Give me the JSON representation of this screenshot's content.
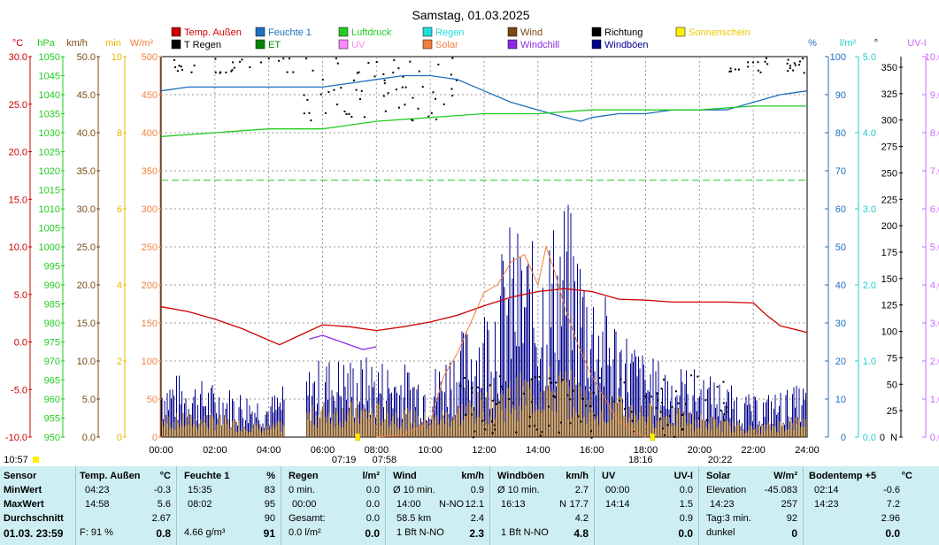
{
  "title": "Samstag, 01.03.2025",
  "colors": {
    "temp": "#cc0000",
    "humidity": "#1f6fbf",
    "pressure": "#22cc22",
    "rain": "#22dddd",
    "wind": "#7a4a10",
    "direction": "#000000",
    "sunshine": "#ffee00",
    "train": "#000000",
    "et": "#008800",
    "uv": "#ff88ff",
    "solar": "#f08040",
    "windchill": "#8a2be2",
    "gust": "#00008b"
  },
  "legend": [
    {
      "label": "Temp. Außen",
      "color": "#cc0000"
    },
    {
      "label": "Feuchte 1",
      "color": "#1f6fbf"
    },
    {
      "label": "Luftdruck",
      "color": "#22cc22"
    },
    {
      "label": "Regen",
      "color": "#22dddd"
    },
    {
      "label": "Wind",
      "color": "#7a4a10"
    },
    {
      "label": "Richtung",
      "color": "#000000"
    },
    {
      "label": "Sonnenschein",
      "color": "#ffee00"
    },
    {
      "label": "T Regen",
      "color": "#000000"
    },
    {
      "label": "ET",
      "color": "#008800"
    },
    {
      "label": "UV",
      "color": "#ff88ff"
    },
    {
      "label": "Solar",
      "color": "#f08040"
    },
    {
      "label": "Windchill",
      "color": "#8a2be2"
    },
    {
      "label": "Windböen",
      "color": "#00008b"
    }
  ],
  "axis_units": {
    "temp": "°C",
    "hpa": "hPa",
    "kmh": "km/h",
    "min": "min",
    "wm2": "W/m²",
    "pct": "%",
    "lm2": "l/m²",
    "deg": "°",
    "uvi": "UV-I"
  },
  "chart_data": {
    "type": "line",
    "title": "Samstag, 01.03.2025",
    "x_ticks": [
      "00:00",
      "02:00",
      "04:00",
      "06:00",
      "08:00",
      "10:00",
      "12:00",
      "14:00",
      "16:00",
      "18:00",
      "20:00",
      "22:00",
      "24:00"
    ],
    "axes": {
      "temp": {
        "ticks": [
          "-10.0",
          "-5.0",
          "0.0",
          "5.0",
          "10.0",
          "15.0",
          "20.0",
          "25.0",
          "30.0"
        ],
        "range": [
          -10,
          30
        ]
      },
      "pressure": {
        "ticks": [
          "950",
          "955",
          "960",
          "965",
          "970",
          "975",
          "980",
          "985",
          "990",
          "995",
          "1000",
          "1005",
          "1010",
          "1015",
          "1020",
          "1025",
          "1030",
          "1035",
          "1040",
          "1045",
          "1050"
        ],
        "range": [
          950,
          1050
        ]
      },
      "wind": {
        "ticks": [
          "0.0",
          "5.0",
          "10.0",
          "15.0",
          "20.0",
          "25.0",
          "30.0",
          "35.0",
          "40.0",
          "45.0",
          "50.0"
        ],
        "range": [
          0,
          50
        ]
      },
      "sunshine": {
        "ticks": [
          "0",
          "2",
          "4",
          "6",
          "8",
          "10"
        ],
        "range": [
          0,
          10
        ]
      },
      "solar": {
        "ticks": [
          "0",
          "50",
          "100",
          "150",
          "200",
          "250",
          "300",
          "350",
          "400",
          "450",
          "500"
        ],
        "range": [
          0,
          500
        ]
      },
      "humidity": {
        "ticks": [
          "0",
          "10",
          "20",
          "30",
          "40",
          "50",
          "60",
          "70",
          "80",
          "90",
          "100"
        ],
        "range": [
          0,
          100
        ]
      },
      "rain": {
        "ticks": [
          "0.0",
          "1.0",
          "2.0",
          "3.0",
          "4.0",
          "5.0"
        ],
        "range": [
          0,
          5
        ]
      },
      "direction": {
        "ticks": [
          "N",
          "25",
          "50",
          "75",
          "100",
          "125",
          "150",
          "175",
          "200",
          "225",
          "250",
          "275",
          "300",
          "325",
          "350"
        ],
        "range": [
          0,
          360
        ],
        "zero_labels": [
          "0"
        ]
      },
      "uv": {
        "ticks": [
          "0.0",
          "1.0",
          "2.0",
          "3.0",
          "4.0",
          "5.0",
          "6.0",
          "7.0",
          "8.0",
          "9.0",
          "10.0"
        ],
        "range": [
          0,
          10
        ]
      }
    },
    "series": [
      {
        "name": "Temp. Außen",
        "axis": "temp",
        "x": [
          0,
          1,
          2,
          3,
          4.4,
          5,
          6,
          7,
          8,
          9,
          10,
          11,
          12,
          13,
          14,
          15,
          16,
          17,
          18,
          19,
          20,
          21,
          22,
          22.5,
          23,
          24
        ],
        "y": [
          3.7,
          3.2,
          2.4,
          1.4,
          -0.3,
          0.5,
          1.8,
          1.6,
          1.2,
          1.6,
          2.1,
          2.8,
          3.8,
          4.7,
          5.3,
          5.6,
          5.3,
          4.5,
          4.4,
          4.2,
          4.2,
          4.2,
          4.1,
          2.8,
          1.7,
          1.0
        ]
      },
      {
        "name": "Feuchte 1",
        "axis": "humidity",
        "x": [
          0,
          1,
          2,
          3,
          4,
          5,
          6,
          7,
          8,
          9,
          10,
          11,
          12,
          13,
          14,
          15,
          15.6,
          16,
          17,
          18,
          19,
          20,
          21,
          22,
          23,
          24
        ],
        "y": [
          91,
          92,
          92,
          92,
          92,
          92,
          92,
          93,
          94,
          95,
          95,
          94,
          91,
          88,
          86,
          84,
          83,
          84,
          85,
          85,
          86,
          86,
          86,
          88,
          90,
          91
        ]
      },
      {
        "name": "Luftdruck",
        "axis": "pressure",
        "x": [
          0,
          2,
          4,
          6,
          7,
          8,
          10,
          12,
          14,
          16,
          18,
          20,
          22,
          24
        ],
        "y": [
          1029,
          1030,
          1031,
          1031,
          1032,
          1033,
          1034,
          1035,
          1035,
          1036,
          1036,
          1036,
          1037,
          1037
        ]
      },
      {
        "name": "Windchill",
        "axis": "temp",
        "x": [
          5.5,
          6,
          6.5,
          7,
          7.5,
          8
        ],
        "y": [
          0.3,
          0.7,
          0.2,
          -0.3,
          -0.8,
          -0.5
        ]
      },
      {
        "name": "Solar",
        "axis": "solar",
        "x": [
          8,
          9,
          10,
          10.5,
          11,
          11.5,
          12,
          12.5,
          13,
          13.5,
          14,
          14.3,
          14.6,
          15,
          15.5,
          16,
          17,
          18
        ],
        "y": [
          0,
          3,
          20,
          80,
          110,
          150,
          190,
          200,
          230,
          240,
          200,
          250,
          220,
          170,
          120,
          80,
          20,
          0
        ]
      },
      {
        "name": "Windböen",
        "axis": "wind",
        "x": [
          0,
          2,
          4,
          6,
          8,
          10,
          12,
          13,
          14,
          15,
          16,
          18,
          20,
          22,
          24
        ],
        "y": [
          5,
          4,
          3,
          6,
          6,
          5,
          10,
          16,
          14,
          18,
          12,
          6,
          5,
          3,
          4
        ]
      },
      {
        "name": "Wind",
        "axis": "wind",
        "x": [
          0,
          2,
          4,
          6,
          8,
          10,
          12,
          13,
          14,
          15,
          16,
          18,
          20,
          22,
          24
        ],
        "y": [
          2,
          2,
          1,
          3,
          3,
          2,
          4,
          5,
          6,
          6,
          4,
          3,
          2,
          1,
          2
        ]
      }
    ],
    "markers": {
      "sunrise": "07:19",
      "sunset": "18:16",
      "t1": "07:58",
      "t2": "20:22"
    }
  },
  "footer_time": "10:57",
  "table": {
    "sensor": {
      "header": "Sensor",
      "rows": [
        "MinWert",
        "MaxWert",
        "Durchschnitt"
      ],
      "last": "01.03. 23:59"
    },
    "temp": {
      "header": "Temp. Außen",
      "unit": "°C",
      "min_time": "04:23",
      "min": "-0.3",
      "max_time": "14:58",
      "max": "5.6",
      "avg": "2.67",
      "f_label": "F: 91 %",
      "current": "0.8"
    },
    "humidity": {
      "header": "Feuchte 1",
      "unit": "%",
      "min_time": "15:35",
      "min": "83",
      "max_time": "08:02",
      "max": "95",
      "avg": "90",
      "abs": "4.66 g/m³",
      "current": "91"
    },
    "rain": {
      "header": "Regen",
      "unit": "l/m²",
      "r1_label": "0 min.",
      "r1": "0.0",
      "r2_label": "00:00",
      "r2": "0.0",
      "r3_label": "Gesamt:",
      "r3": "0.0",
      "r4_label": "0.0 l/m²",
      "current": "0.0"
    },
    "wind": {
      "header": "Wind",
      "unit": "km/h",
      "r1_label": "Ø 10 min.",
      "r1": "0.9",
      "r2_label": "14:00",
      "r2_dir": "N-NO",
      "r2": "12.1",
      "r3_label": "58.5 km",
      "r3": "2.4",
      "r4_label": "1 Bft N-NO",
      "current": "2.3"
    },
    "gust": {
      "header": "Windböen",
      "unit": "km/h",
      "r1_label": "Ø 10 min.",
      "r1": "2.7",
      "r2_label": "16:13",
      "r2_dir": "N",
      "r2": "17.7",
      "r3": "4.2",
      "r4_label": "1 Bft N-NO",
      "current": "4.8"
    },
    "uv": {
      "header": "UV",
      "unit": "UV-I",
      "min_time": "00:00",
      "min": "0.0",
      "max_time": "14:14",
      "max": "1.5",
      "avg": "0.9",
      "current": "0.0"
    },
    "solar": {
      "header": "Solar",
      "unit": "W/m²",
      "r1_label": "Elevation",
      "r1": "-45.083",
      "r2_label": "14:23",
      "r2": "257",
      "r3_label": "Tag:3 min.",
      "r3": "92",
      "r4_label": "dunkel",
      "current": "0"
    },
    "soil": {
      "header": "Bodentemp +5",
      "unit": "°C",
      "min_time": "02:14",
      "min": "-0.6",
      "max_time": "14:23",
      "max": "7.2",
      "avg": "2.96",
      "current": "0.0"
    }
  }
}
